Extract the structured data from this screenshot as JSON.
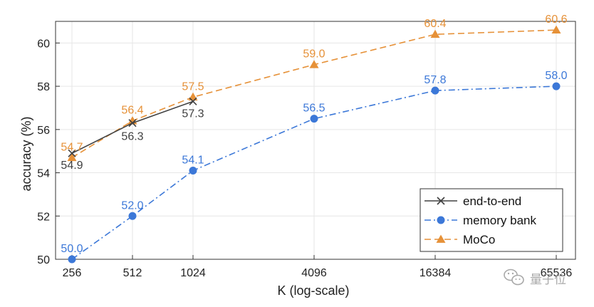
{
  "chart_data": {
    "type": "line",
    "xlabel": "K (log-scale)",
    "ylabel": "accuracy (%)",
    "ylim": [
      50,
      61
    ],
    "grid": true,
    "legend_position": "bottom-right",
    "x": [
      256,
      512,
      1024,
      4096,
      16384,
      65536
    ],
    "x_tick_labels": [
      "256",
      "512",
      "1024",
      "4096",
      "16384",
      "65536"
    ],
    "y_ticks": [
      50,
      52,
      54,
      56,
      58,
      60
    ],
    "y_tick_labels": [
      "50",
      "52",
      "54",
      "56",
      "58",
      "60"
    ],
    "series": [
      {
        "name": "end-to-end",
        "color": "#404040",
        "marker": "x",
        "line_style": "solid",
        "x": [
          256,
          512,
          1024
        ],
        "values": [
          54.9,
          56.3,
          57.3
        ],
        "labels": [
          "54.9",
          "56.3",
          "57.3"
        ]
      },
      {
        "name": "memory bank",
        "color": "#3c78d8",
        "marker": "circle",
        "line_style": "dash-dot",
        "x": [
          256,
          512,
          1024,
          4096,
          16384,
          65536
        ],
        "values": [
          50.0,
          52.0,
          54.1,
          56.5,
          57.8,
          58.0
        ],
        "labels": [
          "50.0",
          "52.0",
          "54.1",
          "56.5",
          "57.8",
          "58.0"
        ]
      },
      {
        "name": "MoCo",
        "color": "#e69138",
        "marker": "triangle",
        "line_style": "dashed",
        "x": [
          256,
          512,
          1024,
          4096,
          16384,
          65536
        ],
        "values": [
          54.7,
          56.4,
          57.5,
          59.0,
          60.4,
          60.6
        ],
        "labels": [
          "54.7",
          "56.4",
          "57.5",
          "59.0",
          "60.4",
          "60.6"
        ]
      }
    ]
  },
  "watermark": {
    "text": "量子位",
    "icon": "wechat-icon"
  }
}
